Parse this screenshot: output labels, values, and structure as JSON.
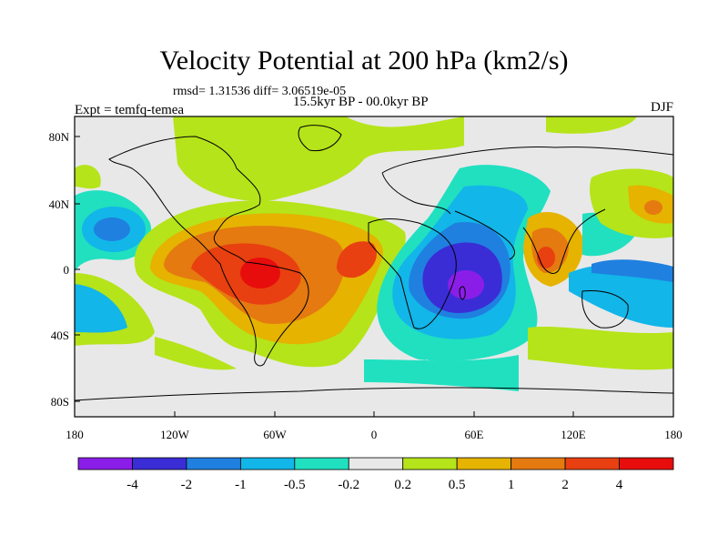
{
  "title": "Velocity Potential at 200 hPa (km2/s)",
  "stats": "rmsd= 1.31536 diff= 3.06519e-05",
  "period": "15.5kyr BP - 00.0kyr BP",
  "experiment": "Expt = temfq-temea",
  "season": "DJF",
  "axes": {
    "x_ticks": [
      "180",
      "120W",
      "60W",
      "0",
      "60E",
      "120E",
      "180"
    ],
    "y_ticks": [
      "80N",
      "40N",
      "0",
      "40S",
      "80S"
    ]
  },
  "colorbar": {
    "labels": [
      "-4",
      "-2",
      "-1",
      "-0.5",
      "-0.2",
      "0.2",
      "0.5",
      "1",
      "2",
      "4"
    ],
    "colors": [
      "#8a1ee8",
      "#3a2dd6",
      "#1f80e0",
      "#12b6e8",
      "#20e0c0",
      "#e8e8e8",
      "#b5e41a",
      "#e5b300",
      "#e57a10",
      "#e84010",
      "#e80d0d"
    ]
  }
}
